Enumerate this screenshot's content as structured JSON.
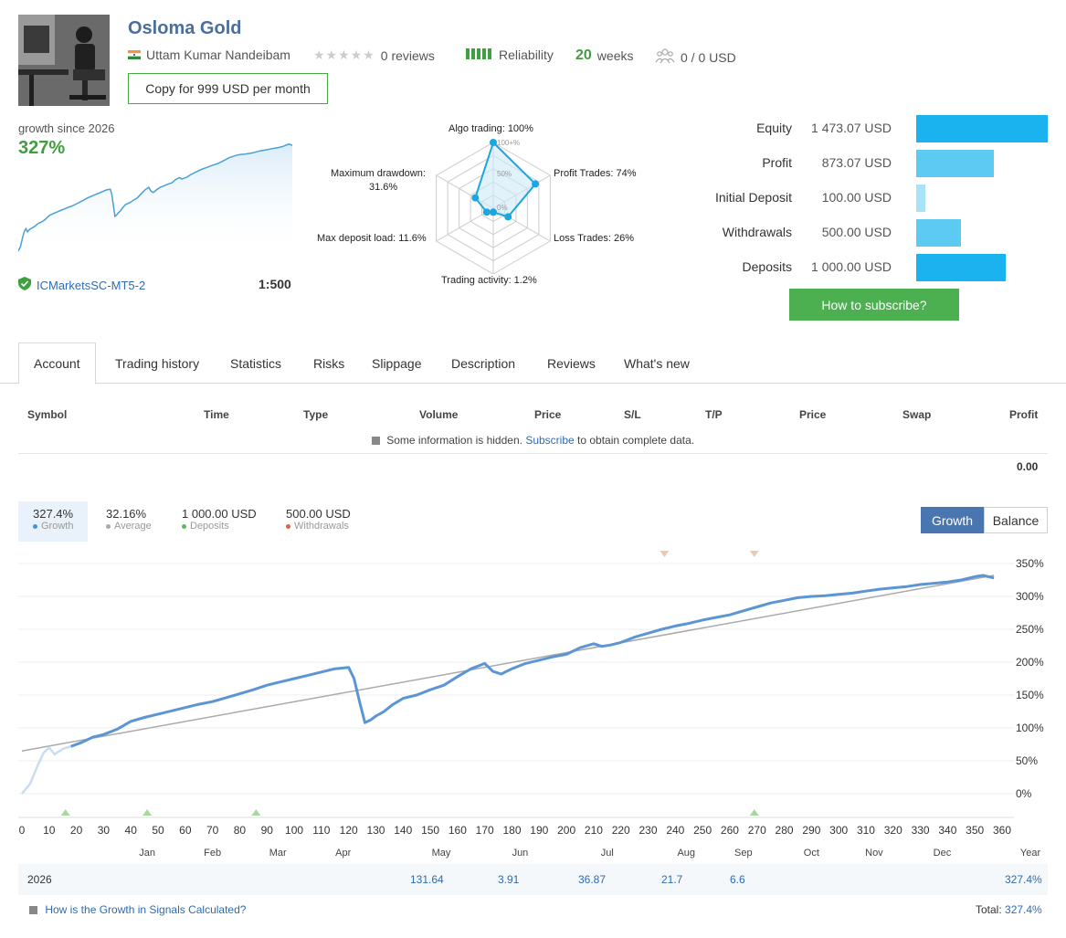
{
  "header": {
    "title": "Osloma Gold",
    "author": "Uttam Kumar Nandeibam",
    "reviews": "0 reviews",
    "reliability": "Reliability",
    "weeks_num": "20",
    "weeks_label": "weeks",
    "subscribers": "0 / 0 USD",
    "copy_button": "Copy for 999 USD per month"
  },
  "summary": {
    "growth_since": "growth since 2026",
    "growth_pct": "327%",
    "broker": "ICMarketsSC-MT5-2",
    "leverage": "1:500"
  },
  "radar": {
    "labels": {
      "algo": "Algo trading: 100%",
      "profit": "Profit Trades: 74%",
      "loss": "Loss Trades: 26%",
      "activity": "Trading activity: 1.2%",
      "deposit_load": "Max deposit load: 11.6%",
      "drawdown_1": "Maximum drawdown:",
      "drawdown_2": "31.6%"
    },
    "ring_labels": {
      "r100": "100+%",
      "r50": "50%",
      "r0": "0%"
    },
    "values": {
      "algo": 100,
      "profit": 74,
      "loss": 26,
      "activity": 1.2,
      "deposit_load": 11.6,
      "drawdown": 31.6
    }
  },
  "stats": [
    {
      "label": "Equity",
      "value": "1 473.07 USD",
      "amount": 1473.07,
      "color": "#1ab3f0"
    },
    {
      "label": "Profit",
      "value": "873.07 USD",
      "amount": 873.07,
      "color": "#5ccaf3"
    },
    {
      "label": "Initial Deposit",
      "value": "100.00 USD",
      "amount": 100,
      "color": "#a9e3f8"
    },
    {
      "label": "Withdrawals",
      "value": "500.00 USD",
      "amount": 500,
      "color": "#5ccaf3"
    },
    {
      "label": "Deposits",
      "value": "1 000.00 USD",
      "amount": 1000,
      "color": "#1ab3f0"
    }
  ],
  "subscribe_button": "How to subscribe?",
  "tabs": [
    "Account",
    "Trading history",
    "Statistics",
    "Risks",
    "Slippage",
    "Description",
    "Reviews",
    "What's new"
  ],
  "table": {
    "headers": [
      "Symbol",
      "Time",
      "Type",
      "Volume",
      "Price",
      "S/L",
      "T/P",
      "Price",
      "Swap",
      "Profit"
    ],
    "hidden_pre": "Some information is hidden.",
    "hidden_link": "Subscribe",
    "hidden_post": "to obtain complete data.",
    "profit_total": "0.00"
  },
  "legend": [
    {
      "value": "327.4%",
      "name": "Growth",
      "color": "#4a90d9"
    },
    {
      "value": "32.16%",
      "name": "Average",
      "color": "#aaaaaa"
    },
    {
      "value": "1 000.00 USD",
      "name": "Deposits",
      "color": "#5cb85c"
    },
    {
      "value": "500.00 USD",
      "name": "Withdrawals",
      "color": "#e06040"
    }
  ],
  "toggle": {
    "growth": "Growth",
    "balance": "Balance"
  },
  "chart_data": {
    "type": "line",
    "ylabel_ticks": [
      "350%",
      "300%",
      "250%",
      "200%",
      "150%",
      "100%",
      "50%",
      "0%"
    ],
    "yticks": [
      350,
      300,
      250,
      200,
      150,
      100,
      50,
      0
    ],
    "ylim": [
      -30,
      350
    ],
    "xlim": [
      0,
      360
    ],
    "xticks": [
      0,
      10,
      20,
      30,
      40,
      50,
      60,
      70,
      80,
      90,
      100,
      110,
      120,
      130,
      140,
      150,
      160,
      170,
      180,
      190,
      200,
      210,
      220,
      230,
      240,
      250,
      260,
      270,
      280,
      290,
      300,
      310,
      320,
      330,
      340,
      350,
      360
    ],
    "months": [
      "Jan",
      "Feb",
      "Mar",
      "Apr",
      "May",
      "Jun",
      "Jul",
      "Aug",
      "Sep",
      "Oct",
      "Nov",
      "Dec"
    ],
    "month_x": [
      46,
      70,
      94,
      118,
      154,
      183,
      215,
      244,
      265,
      290,
      313,
      338
    ],
    "year_label": "Year",
    "grid": true,
    "series": [
      {
        "name": "Growth",
        "color": "#5b95d6",
        "x": [
          0,
          3,
          6,
          8,
          10,
          12,
          15,
          18,
          22,
          26,
          30,
          35,
          40,
          45,
          50,
          55,
          60,
          65,
          70,
          75,
          80,
          85,
          90,
          95,
          100,
          105,
          110,
          115,
          120,
          122,
          124,
          126,
          128,
          130,
          133,
          136,
          140,
          145,
          150,
          155,
          160,
          165,
          170,
          173,
          176,
          180,
          185,
          190,
          195,
          200,
          205,
          210,
          213,
          216,
          220,
          225,
          230,
          235,
          240,
          245,
          250,
          255,
          260,
          265,
          270,
          275,
          280,
          285,
          290,
          295,
          300,
          305,
          310,
          315,
          320,
          325,
          330,
          335,
          340,
          345,
          350,
          353,
          355,
          357
        ],
        "values": [
          0,
          15,
          45,
          62,
          70,
          60,
          68,
          72,
          78,
          86,
          90,
          98,
          110,
          116,
          121,
          126,
          131,
          136,
          140,
          146,
          152,
          158,
          165,
          170,
          175,
          180,
          185,
          190,
          192,
          175,
          140,
          108,
          112,
          118,
          125,
          135,
          145,
          150,
          158,
          165,
          178,
          190,
          198,
          186,
          182,
          190,
          198,
          203,
          208,
          212,
          222,
          228,
          224,
          226,
          230,
          238,
          244,
          250,
          255,
          259,
          264,
          268,
          272,
          278,
          284,
          290,
          294,
          298,
          300,
          301,
          303,
          305,
          308,
          311,
          313,
          315,
          318,
          320,
          322,
          325,
          330,
          332,
          330,
          328
        ]
      },
      {
        "name": "Average",
        "color": "#aaaaaa",
        "x": [
          0,
          357
        ],
        "values": [
          65,
          332
        ]
      }
    ],
    "deposit_markers_x": [
      16,
      46,
      86,
      269
    ],
    "withdrawal_markers_x": [
      236,
      269
    ]
  },
  "year_row": {
    "year": "2026",
    "values": [
      "131.64",
      "3.91",
      "36.87",
      "21.7",
      "6.6"
    ],
    "total": "327.4%"
  },
  "footer": {
    "help_link": "How is the Growth in Signals Calculated?",
    "total_label": "Total:",
    "total_value": "327.4%"
  }
}
